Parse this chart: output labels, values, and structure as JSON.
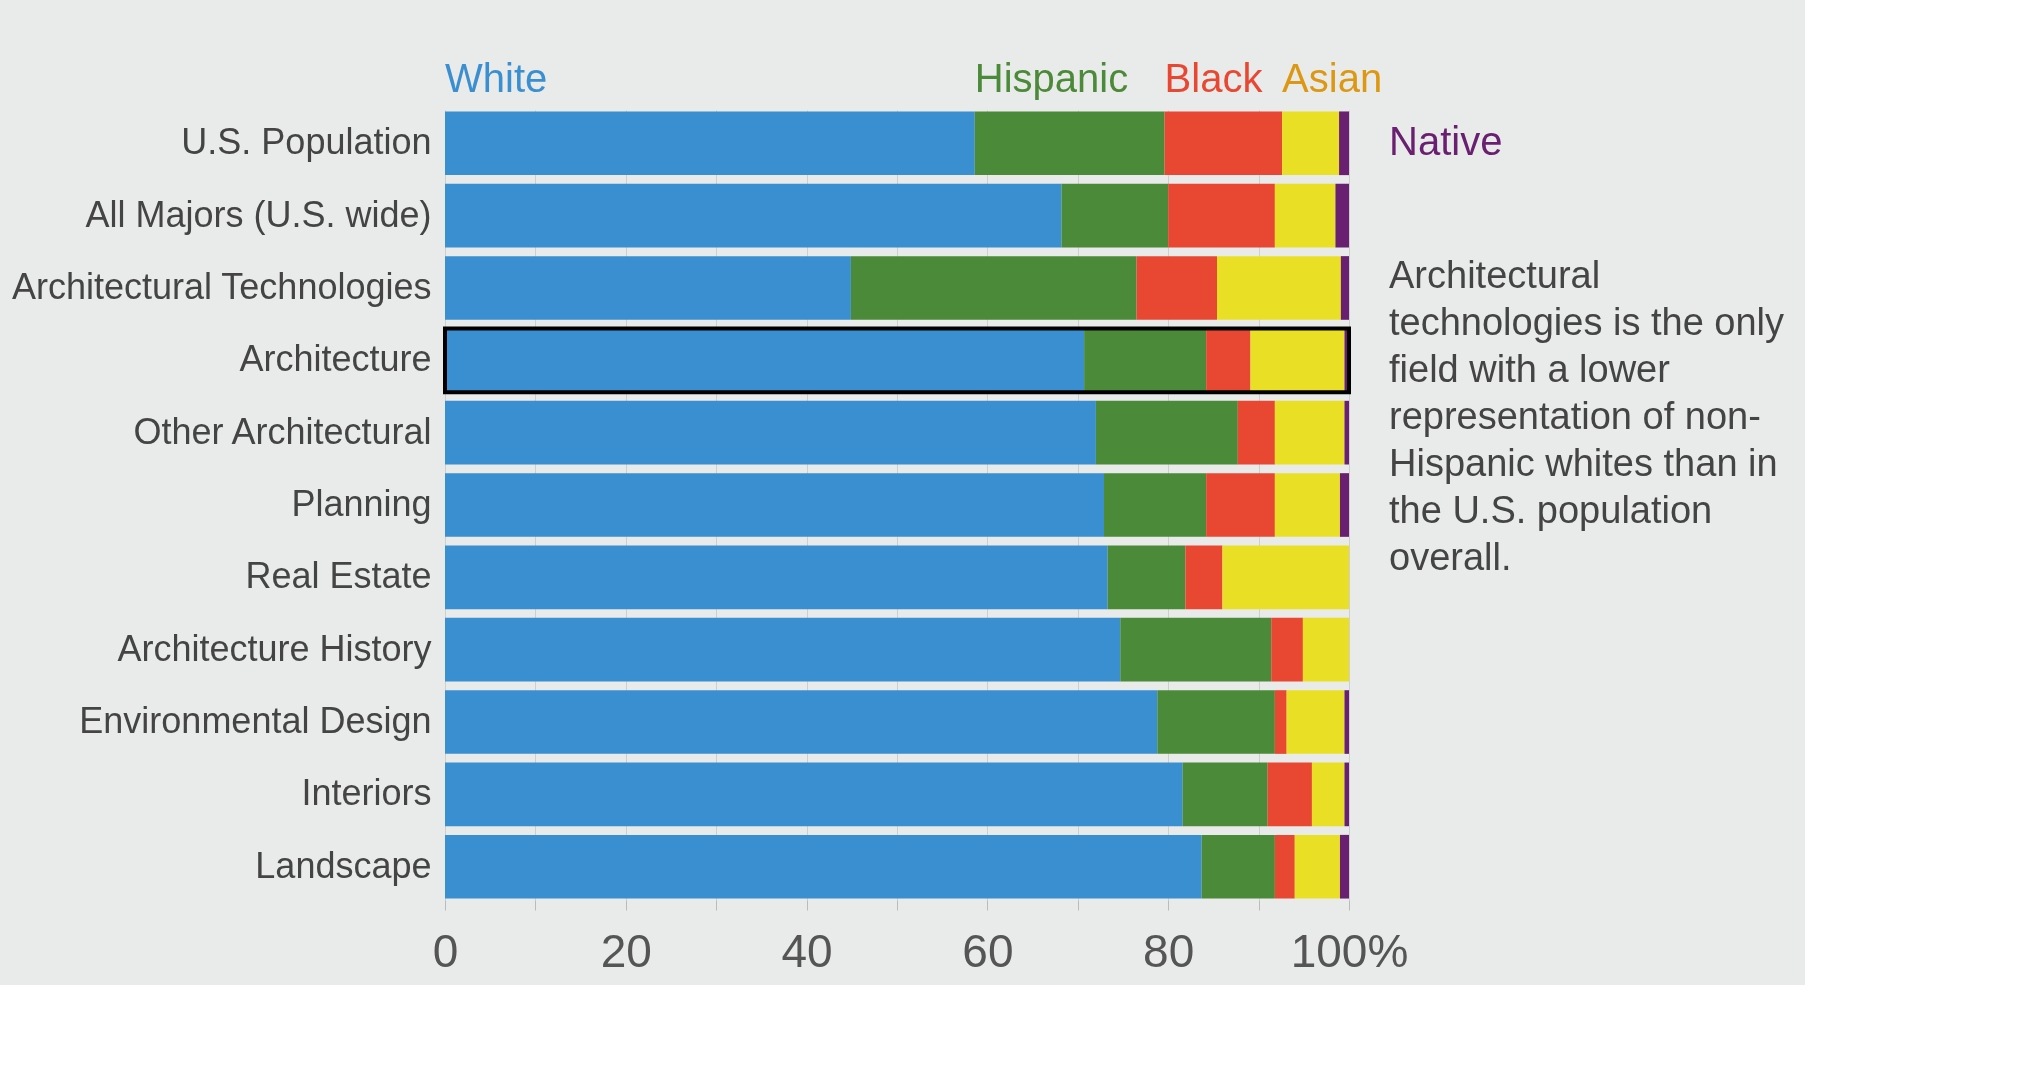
{
  "chart_data": {
    "type": "bar",
    "orientation": "horizontal",
    "stacked": true,
    "categories": [
      "U.S. Population",
      "All Majors (U.S. wide)",
      "Architectural Technologies",
      "Architecture",
      "Other Architectural",
      "Planning",
      "Real Estate",
      "Architecture History",
      "Environmental Design",
      "Interiors",
      "Landscape"
    ],
    "series": [
      {
        "name": "White",
        "color": "#3a8fd0",
        "values": [
          58.6,
          68.2,
          44.9,
          70.7,
          72.0,
          72.9,
          73.3,
          74.7,
          78.8,
          81.6,
          83.7
        ]
      },
      {
        "name": "Hispanic",
        "color": "#4b8a38",
        "values": [
          21.0,
          11.8,
          31.6,
          13.5,
          15.7,
          11.3,
          8.6,
          16.7,
          13.0,
          9.4,
          8.1
        ]
      },
      {
        "name": "Black",
        "color": "#e84832",
        "values": [
          13.0,
          11.8,
          8.9,
          4.9,
          4.1,
          7.6,
          4.1,
          3.5,
          1.3,
          4.9,
          2.2
        ]
      },
      {
        "name": "Asian",
        "color": "#e9e026",
        "values": [
          6.3,
          6.7,
          13.7,
          10.4,
          7.7,
          7.2,
          14.0,
          5.1,
          6.4,
          3.6,
          5.0
        ]
      },
      {
        "name": "Native",
        "color": "#6a2070",
        "values": [
          1.1,
          1.5,
          0.9,
          0.5,
          0.5,
          1.0,
          0.0,
          0.0,
          0.5,
          0.5,
          1.0
        ]
      }
    ],
    "xlim": [
      0,
      100
    ],
    "xticks": [
      0,
      {
        "value": 10,
        "label": null
      },
      20,
      {
        "value": 30,
        "label": null
      },
      40,
      {
        "value": 50,
        "label": null
      },
      60,
      {
        "value": 70,
        "label": null
      },
      80,
      {
        "value": 90,
        "label": null
      },
      {
        "value": 100,
        "label": "100%"
      }
    ],
    "grid": "x",
    "legend": "top",
    "annotations": [
      "Architectural technologies is the only field with a lower representation of non-Hispanic whites than in the U.S. population overall."
    ]
  }
}
